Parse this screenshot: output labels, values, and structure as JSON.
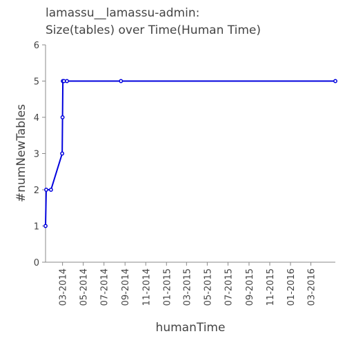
{
  "chart_data": {
    "type": "line",
    "title_lines": [
      "lamassu__lamassu-admin:",
      "Size(tables) over Time(Human Time)"
    ],
    "xlabel": "humanTime",
    "ylabel": "#numNewTables",
    "x_axis": {
      "type": "date",
      "min": "2014-01-10",
      "max": "2016-05-12",
      "ticks": [
        "03-2014",
        "05-2014",
        "07-2014",
        "09-2014",
        "11-2014",
        "01-2015",
        "03-2015",
        "05-2015",
        "07-2015",
        "09-2015",
        "11-2015",
        "01-2016",
        "03-2016"
      ]
    },
    "y_axis": {
      "min": 0,
      "max": 6,
      "ticks": [
        0,
        1,
        2,
        3,
        4,
        5,
        6
      ]
    },
    "grid": false,
    "series": [
      {
        "color": "#0000dd",
        "points": [
          {
            "x": "2014-01-10",
            "y": 1
          },
          {
            "x": "2014-01-12",
            "y": 2
          },
          {
            "x": "2014-01-26",
            "y": 2
          },
          {
            "x": "2014-02-28",
            "y": 3
          },
          {
            "x": "2014-03-01",
            "y": 4
          },
          {
            "x": "2014-03-02",
            "y": 5
          },
          {
            "x": "2014-03-05",
            "y": 5
          },
          {
            "x": "2014-03-14",
            "y": 5
          },
          {
            "x": "2014-08-20",
            "y": 5
          },
          {
            "x": "2016-05-12",
            "y": 5
          }
        ]
      }
    ]
  }
}
